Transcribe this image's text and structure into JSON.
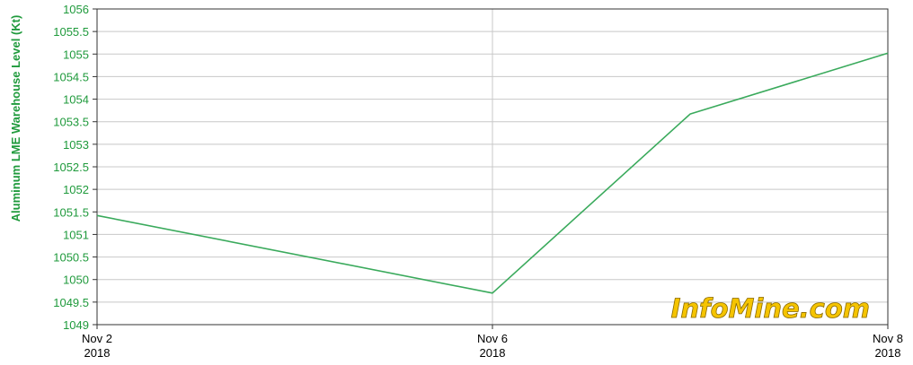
{
  "chart_data": {
    "type": "line",
    "ylabel": "Aluminum LME Warehouse Level (Kt)",
    "xlabel": "",
    "x": [
      0,
      4,
      6,
      8
    ],
    "series": [
      {
        "values": [
          1051.42,
          1049.7,
          1053.67,
          1055.02
        ],
        "color": "#3aaa5c"
      }
    ],
    "ylim": [
      1049,
      1056
    ],
    "xlim": [
      0,
      8
    ],
    "yticks": [
      "1049",
      "1049.5",
      "1050",
      "1050.5",
      "1051",
      "1051.5",
      "1052",
      "1052.5",
      "1053",
      "1053.5",
      "1054",
      "1054.5",
      "1055",
      "1055.5",
      "1056"
    ],
    "xticks": [
      {
        "x": 0,
        "line1": "Nov 2",
        "line2": "2018"
      },
      {
        "x": 4,
        "line1": "Nov 6",
        "line2": "2018"
      },
      {
        "x": 8,
        "line1": "Nov 8",
        "line2": "2018"
      }
    ],
    "grid": true,
    "watermark": "InfoMine.com"
  }
}
